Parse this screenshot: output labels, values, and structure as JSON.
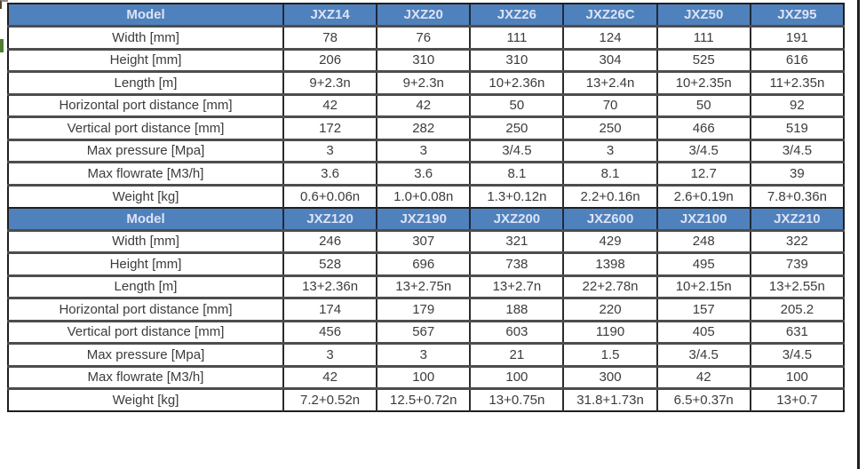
{
  "page": {
    "background": "#ffffff",
    "right_edge_line_color": "#1f1f1f",
    "green_mark_color": "#4e7d32"
  },
  "table": {
    "header_bg": "#4f81bd",
    "header_text_color": "#dde3f3",
    "cell_text_color": "#3c3c3c",
    "outer_border_color": "#1f1f1f",
    "header_label": "Model",
    "row_labels": [
      "Width [mm]",
      "Height [mm]",
      "Length [m]",
      "Horizontal port distance [mm]",
      "Vertical port distance  [mm]",
      "Max pressure [Mpa]",
      "Max flowrate  [M3/h]",
      "Weight [kg]"
    ],
    "sections": [
      {
        "models": [
          "JXZ14",
          "JXZ20",
          "JXZ26",
          "JXZ26C",
          "JXZ50",
          "JXZ95"
        ],
        "rows": [
          [
            "78",
            "76",
            "111",
            "124",
            "111",
            "191"
          ],
          [
            "206",
            "310",
            "310",
            "304",
            "525",
            "616"
          ],
          [
            "9+2.3n",
            "9+2.3n",
            "10+2.36n",
            "13+2.4n",
            "10+2.35n",
            "11+2.35n"
          ],
          [
            "42",
            "42",
            "50",
            "70",
            "50",
            "92"
          ],
          [
            "172",
            "282",
            "250",
            "250",
            "466",
            "519"
          ],
          [
            "3",
            "3",
            "3/4.5",
            "3",
            "3/4.5",
            "3/4.5"
          ],
          [
            "3.6",
            "3.6",
            "8.1",
            "8.1",
            "12.7",
            "39"
          ],
          [
            "0.6+0.06n",
            "1.0+0.08n",
            "1.3+0.12n",
            "2.2+0.16n",
            "2.6+0.19n",
            "7.8+0.36n"
          ]
        ]
      },
      {
        "models": [
          "JXZ120",
          "JXZ190",
          "JXZ200",
          "JXZ600",
          "JXZ100",
          "JXZ210"
        ],
        "rows": [
          [
            "246",
            "307",
            "321",
            "429",
            "248",
            "322"
          ],
          [
            "528",
            "696",
            "738",
            "1398",
            "495",
            "739"
          ],
          [
            "13+2.36n",
            "13+2.75n",
            "13+2.7n",
            "22+2.78n",
            "10+2.15n",
            "13+2.55n"
          ],
          [
            "174",
            "179",
            "188",
            "220",
            "157",
            "205.2"
          ],
          [
            "456",
            "567",
            "603",
            "1190",
            "405",
            "631"
          ],
          [
            "3",
            "3",
            "21",
            "1.5",
            "3/4.5",
            "3/4.5"
          ],
          [
            "42",
            "100",
            "100",
            "300",
            "42",
            "100"
          ],
          [
            "7.2+0.52n",
            "12.5+0.72n",
            "13+0.75n",
            "31.8+1.73n",
            "6.5+0.37n",
            "13+0.7"
          ]
        ]
      }
    ]
  }
}
